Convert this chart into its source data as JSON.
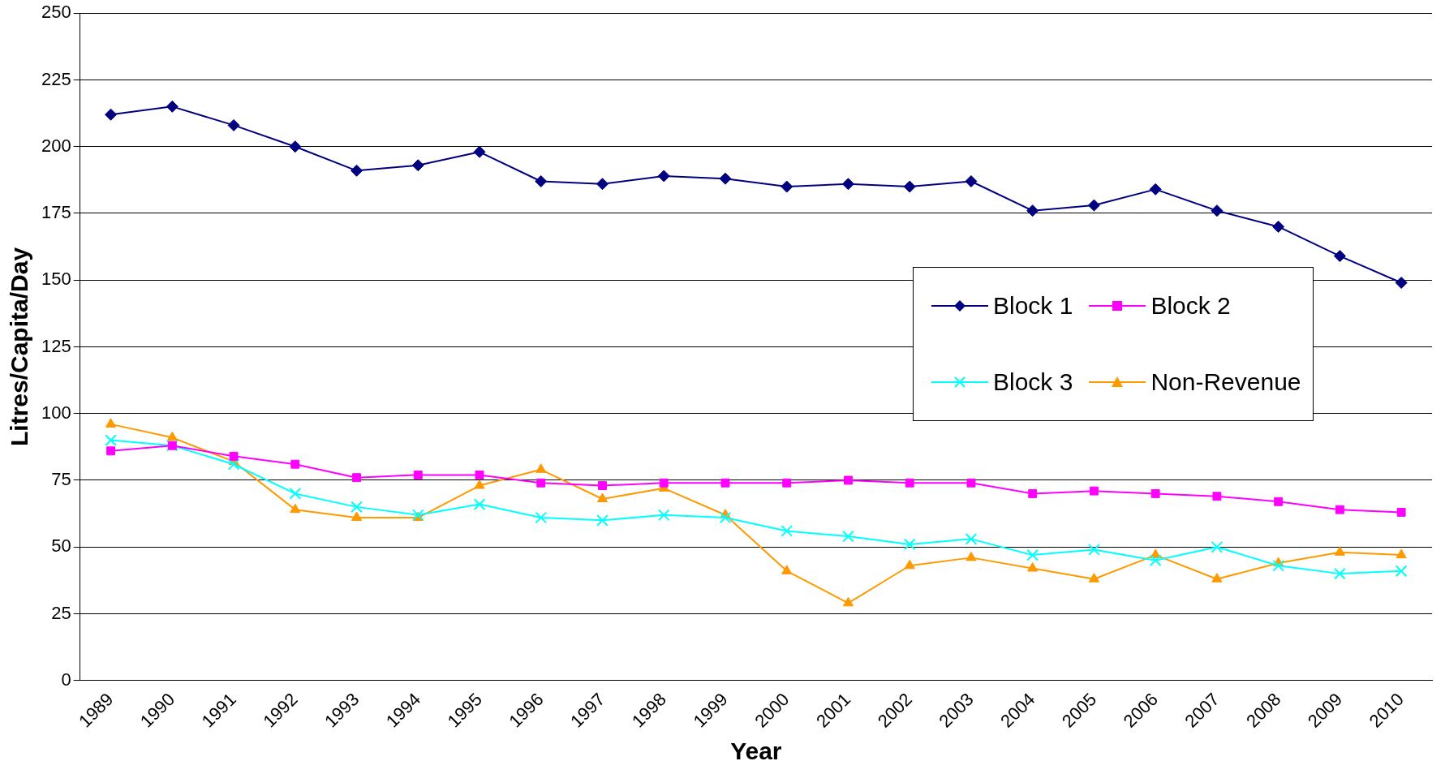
{
  "chart_data": {
    "type": "line",
    "xlabel": "Year",
    "ylabel": "Litres/Capita/Day",
    "categories": [
      "1989",
      "1990",
      "1991",
      "1992",
      "1993",
      "1994",
      "1995",
      "1996",
      "1997",
      "1998",
      "1999",
      "2000",
      "2001",
      "2002",
      "2003",
      "2004",
      "2005",
      "2006",
      "2007",
      "2008",
      "2009",
      "2010"
    ],
    "series": [
      {
        "name": "Block 1",
        "color": "#000080",
        "marker": "diamond",
        "values": [
          212,
          215,
          208,
          200,
          191,
          193,
          198,
          187,
          186,
          189,
          188,
          185,
          186,
          185,
          187,
          176,
          178,
          184,
          176,
          170,
          159,
          149
        ]
      },
      {
        "name": "Block 2",
        "color": "#ff00ff",
        "marker": "square",
        "values": [
          86,
          88,
          84,
          81,
          76,
          77,
          77,
          74,
          73,
          74,
          74,
          74,
          75,
          74,
          74,
          70,
          71,
          70,
          69,
          67,
          64,
          63
        ]
      },
      {
        "name": "Block 3",
        "color": "#00ffff",
        "marker": "cross",
        "values": [
          90,
          88,
          81,
          70,
          65,
          62,
          66,
          61,
          60,
          62,
          61,
          56,
          54,
          51,
          53,
          47,
          49,
          45,
          50,
          43,
          40,
          41
        ]
      },
      {
        "name": "Non-Revenue",
        "color": "#ff9900",
        "marker": "triangle",
        "values": [
          96,
          91,
          82,
          64,
          61,
          61,
          73,
          79,
          68,
          72,
          62,
          41,
          29,
          43,
          46,
          42,
          38,
          47,
          38,
          44,
          48,
          47
        ]
      }
    ],
    "ylim": [
      0,
      250
    ],
    "yticks": [
      0,
      25,
      50,
      75,
      100,
      125,
      150,
      175,
      200,
      225,
      250
    ],
    "grid": "y",
    "legend": "right",
    "line_style": "solid"
  }
}
